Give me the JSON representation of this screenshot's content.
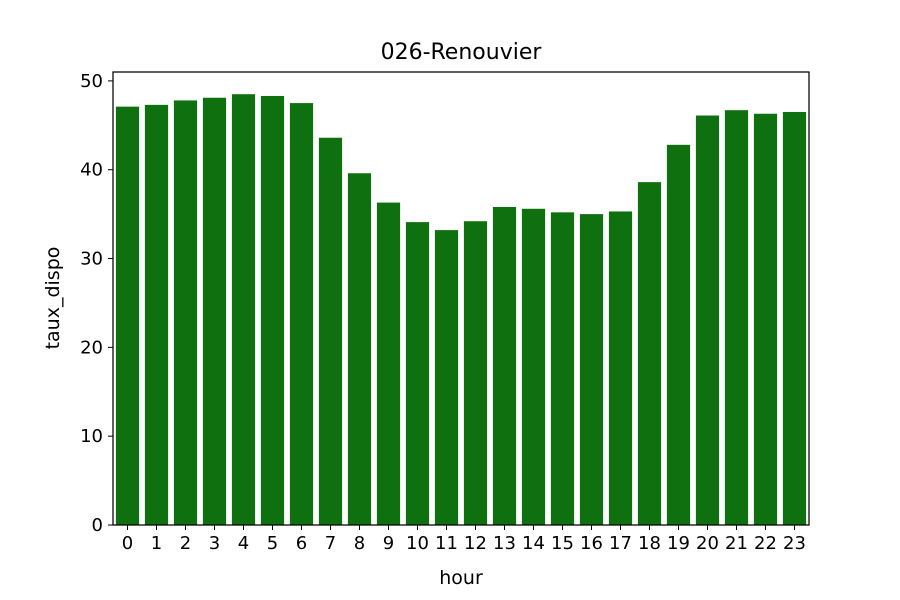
{
  "chart_data": {
    "type": "bar",
    "title": "026-Renouvier",
    "xlabel": "hour",
    "ylabel": "taux_dispo",
    "categories": [
      "0",
      "1",
      "2",
      "3",
      "4",
      "5",
      "6",
      "7",
      "8",
      "9",
      "10",
      "11",
      "12",
      "13",
      "14",
      "15",
      "16",
      "17",
      "18",
      "19",
      "20",
      "21",
      "22",
      "23"
    ],
    "values": [
      47.1,
      47.3,
      47.8,
      48.1,
      48.5,
      48.3,
      47.5,
      43.6,
      39.6,
      36.3,
      34.1,
      33.2,
      34.2,
      35.8,
      35.6,
      35.2,
      35.0,
      35.3,
      38.6,
      42.8,
      46.1,
      46.7,
      46.3,
      46.5
    ],
    "ylim": [
      0,
      51
    ],
    "yticks": [
      0,
      10,
      20,
      30,
      40,
      50
    ],
    "bar_color": "#0e700e",
    "grid": false,
    "legend": "none"
  }
}
